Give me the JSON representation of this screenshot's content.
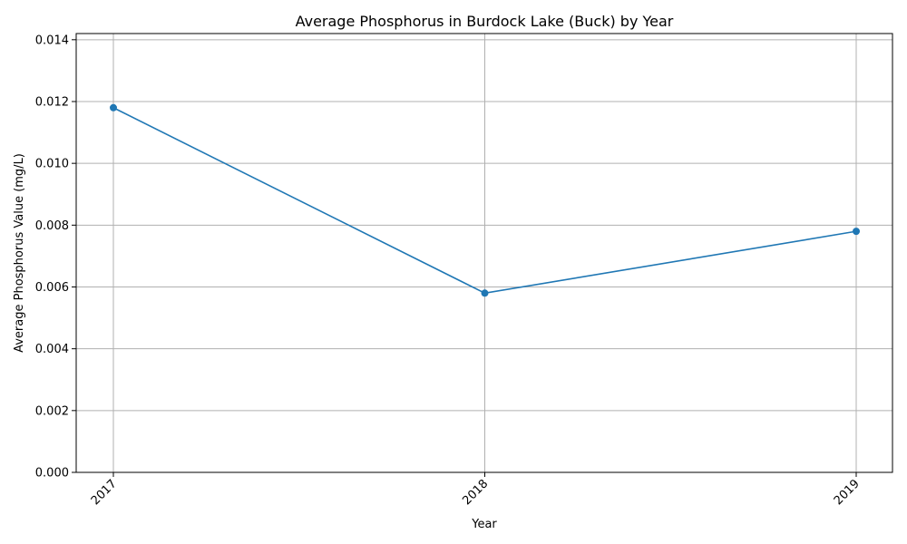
{
  "chart_data": {
    "type": "line",
    "title": "Average Phosphorus in Burdock Lake (Buck) by Year",
    "xlabel": "Year",
    "ylabel": "Average Phosphorus Value (mg/L)",
    "categories": [
      "2017",
      "2018",
      "2019"
    ],
    "series": [
      {
        "values": [
          0.0118,
          0.0058,
          0.0078
        ],
        "color": "#1f77b4"
      }
    ],
    "ylim": [
      0,
      0.0142
    ],
    "yticks": [
      "0.000",
      "0.002",
      "0.004",
      "0.006",
      "0.008",
      "0.010",
      "0.012",
      "0.014"
    ],
    "grid": true,
    "marker": "circle"
  }
}
